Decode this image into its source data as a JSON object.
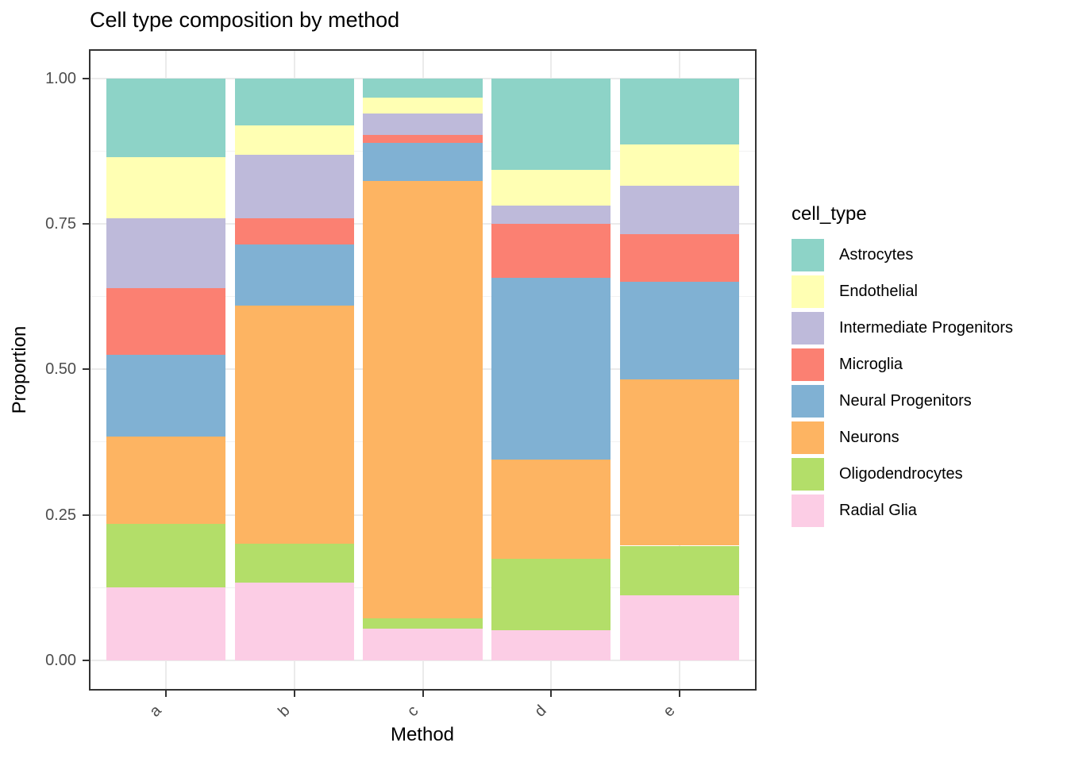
{
  "title": "Cell type composition by method",
  "chart_data": {
    "type": "bar",
    "stacked": true,
    "normalized": true,
    "title": "Cell type composition by method",
    "xlabel": "Method",
    "ylabel": "Proportion",
    "categories": [
      "a",
      "b",
      "c",
      "d",
      "e"
    ],
    "ylim": [
      0,
      1
    ],
    "yticks": [
      {
        "value": 1.0,
        "label": "1.00"
      },
      {
        "value": 0.75,
        "label": "0.75"
      },
      {
        "value": 0.5,
        "label": "0.50"
      },
      {
        "value": 0.25,
        "label": "0.25"
      },
      {
        "value": 0.0,
        "label": "0.00"
      }
    ],
    "minor_ticks": [
      0.875,
      0.625,
      0.375,
      0.125
    ],
    "grid": true,
    "legend_title": "cell_type",
    "legend_position": "right",
    "series": [
      {
        "name": "Astrocytes",
        "color": "#8DD3C7",
        "values": [
          0.135,
          0.081,
          0.034,
          0.157,
          0.114
        ]
      },
      {
        "name": "Endothelial",
        "color": "#FFFFB3",
        "values": [
          0.105,
          0.051,
          0.026,
          0.062,
          0.071
        ]
      },
      {
        "name": "Intermediate Progenitors",
        "color": "#BEBADA",
        "values": [
          0.12,
          0.109,
          0.038,
          0.031,
          0.083
        ]
      },
      {
        "name": "Microglia",
        "color": "#FB8072",
        "values": [
          0.115,
          0.045,
          0.013,
          0.093,
          0.082
        ]
      },
      {
        "name": "Neural Progenitors",
        "color": "#80B1D3",
        "values": [
          0.14,
          0.104,
          0.066,
          0.312,
          0.167
        ]
      },
      {
        "name": "Neurons",
        "color": "#FDB462",
        "values": [
          0.15,
          0.41,
          0.751,
          0.171,
          0.286
        ]
      },
      {
        "name": "Oligodendrocytes",
        "color": "#B3DE69",
        "values": [
          0.11,
          0.066,
          0.018,
          0.122,
          0.085
        ]
      },
      {
        "name": "Radial Glia",
        "color": "#FCCDE5",
        "values": [
          0.125,
          0.134,
          0.054,
          0.052,
          0.112
        ]
      }
    ],
    "stack_order_bottom_to_top": [
      "Radial Glia",
      "Oligodendrocytes",
      "Neurons",
      "Neural Progenitors",
      "Microglia",
      "Intermediate Progenitors",
      "Endothelial",
      "Astrocytes"
    ]
  },
  "style": {
    "grid_major": "#EBEBEB",
    "grid_minor": "#F2F2F2",
    "panel_border": "#333333",
    "tick_mark": "#333333",
    "axis_text": "#4D4D4D",
    "title_text": "#000000",
    "background": "#FFFFFF"
  }
}
